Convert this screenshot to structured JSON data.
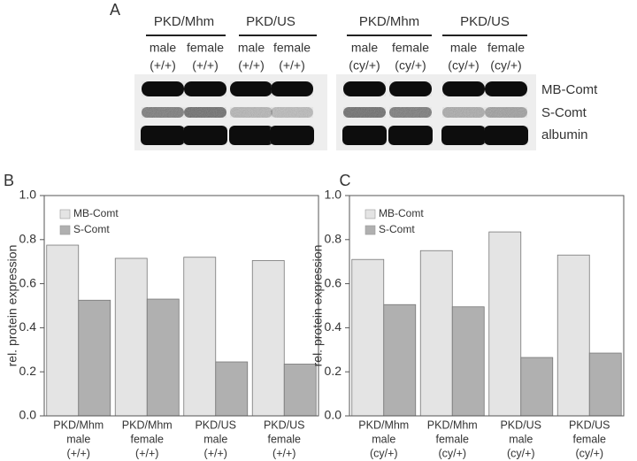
{
  "blot": {
    "label": "A",
    "groups": [
      {
        "name": "PKD/Mhm",
        "lanes": [
          [
            "male",
            "(+/+)"
          ],
          [
            "female",
            "(+/+)"
          ]
        ]
      },
      {
        "name": "PKD/US",
        "lanes": [
          [
            "male",
            "(+/+)"
          ],
          [
            "female",
            "(+/+)"
          ]
        ]
      },
      {
        "name": "PKD/Mhm",
        "lanes": [
          [
            "male",
            "(cy/+)"
          ],
          [
            "female",
            "(cy/+)"
          ]
        ]
      },
      {
        "name": "PKD/US",
        "lanes": [
          [
            "male",
            "(cy/+)"
          ],
          [
            "female",
            "(cy/+)"
          ]
        ]
      }
    ],
    "bands": [
      "MB-Comt",
      "S-Comt",
      "albumin"
    ]
  },
  "chart_data": [
    {
      "type": "bar",
      "panel": "B",
      "ylabel": "rel. protein expression",
      "categories": [
        [
          "PKD/Mhm",
          "male",
          "(+/+)"
        ],
        [
          "PKD/Mhm",
          "female",
          "(+/+)"
        ],
        [
          "PKD/US",
          "male",
          "(+/+)"
        ],
        [
          "PKD/US",
          "female",
          "(+/+)"
        ]
      ],
      "series": [
        {
          "name": "MB-Comt",
          "color": "#e4e4e4",
          "values": [
            0.775,
            0.715,
            0.72,
            0.705
          ]
        },
        {
          "name": "S-Comt",
          "color": "#b0b0b0",
          "values": [
            0.525,
            0.53,
            0.245,
            0.235
          ]
        }
      ],
      "ylim": [
        0,
        1
      ],
      "yticks": [
        {
          "value": 0,
          "label": "0.0"
        },
        0.2,
        0.4,
        0.6,
        0.8,
        {
          "value": 1,
          "label": "1.0"
        }
      ],
      "legend": "upper left"
    },
    {
      "type": "bar",
      "panel": "C",
      "ylabel": "rel. protein expression",
      "categories": [
        [
          "PKD/Mhm",
          "male",
          "(cy/+)"
        ],
        [
          "PKD/Mhm",
          "female",
          "(cy/+)"
        ],
        [
          "PKD/US",
          "male",
          "(cy/+)"
        ],
        [
          "PKD/US",
          "female",
          "(cy/+)"
        ]
      ],
      "series": [
        {
          "name": "MB-Comt",
          "color": "#e4e4e4",
          "values": [
            0.71,
            0.75,
            0.835,
            0.73
          ]
        },
        {
          "name": "S-Comt",
          "color": "#b0b0b0",
          "values": [
            0.505,
            0.495,
            0.265,
            0.285
          ]
        }
      ],
      "ylim": [
        0,
        1
      ],
      "yticks": [
        {
          "value": 0,
          "label": "0.0"
        },
        0.2,
        0.4,
        0.6,
        0.8,
        {
          "value": 1,
          "label": "1.0"
        }
      ],
      "legend": "upper left"
    }
  ]
}
